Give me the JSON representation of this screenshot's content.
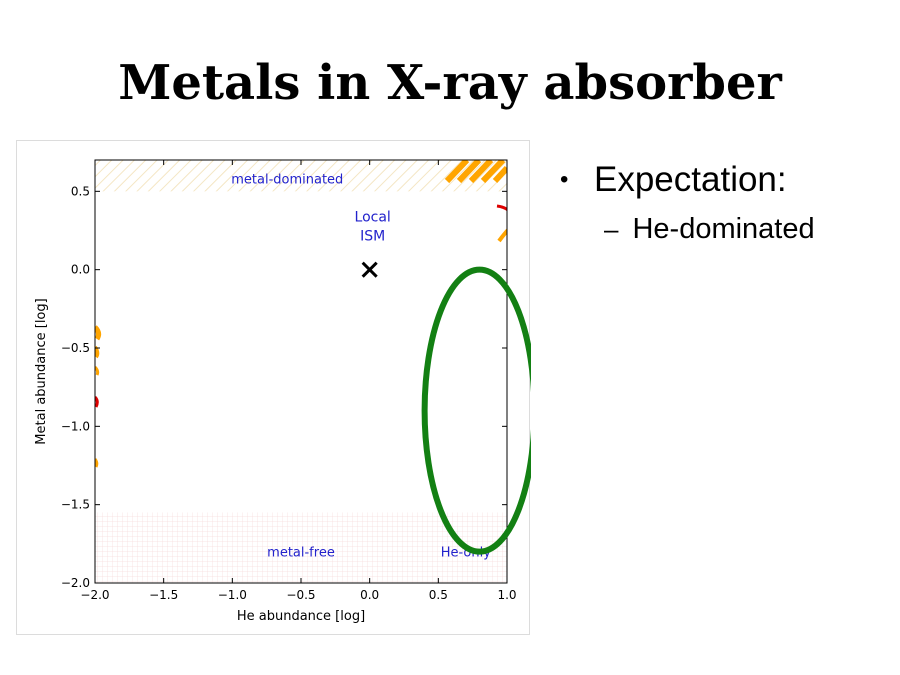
{
  "slide": {
    "title": "Metals in X-ray absorber",
    "bullets": [
      {
        "text": "Expectation:",
        "marker": "•",
        "sub": [
          {
            "text": "He-dominated",
            "marker": "–"
          }
        ]
      }
    ]
  },
  "chart_data": {
    "type": "scatter",
    "title": "",
    "xlabel": "He abundance [log]",
    "ylabel": "Metal abundance [log]",
    "xlim": [
      -2.0,
      1.0
    ],
    "ylim": [
      -2.0,
      0.7
    ],
    "xticks": [
      -2.0,
      -1.5,
      -1.0,
      -0.5,
      0.0,
      0.5,
      1.0
    ],
    "xtick_labels": [
      "−2.0",
      "−1.5",
      "−1.0",
      "−0.5",
      "0.0",
      "0.5",
      "1.0"
    ],
    "yticks": [
      0.5,
      0.0,
      -0.5,
      -1.0,
      -1.5,
      -2.0
    ],
    "ytick_labels": [
      "0.5",
      "0.0",
      "−0.5",
      "−1.0",
      "−1.5",
      "−2.0"
    ],
    "grid": false,
    "regions": [
      {
        "label": "metal-dominated",
        "x": -0.6,
        "y": 0.55,
        "color": "#2222cc"
      },
      {
        "label": "metal-free",
        "x": -0.5,
        "y": -1.83,
        "color": "#2222cc"
      },
      {
        "label": "He-only",
        "x": 0.7,
        "y": -1.83,
        "color": "#2222cc"
      }
    ],
    "points": [
      {
        "label_lines": [
          "Local",
          "ISM"
        ],
        "x": 0.0,
        "y": 0.0,
        "marker": "x",
        "label_color": "#2222cc"
      }
    ],
    "highlight_ellipse": {
      "center_x": 0.8,
      "center_y": -0.9,
      "half_width_x": 0.4,
      "half_height_y": 0.9,
      "color": "#138013"
    },
    "colors": {
      "hatch_light": "#f4e6c4",
      "hatch_orange": "#ffa500",
      "red": "#dd0000",
      "metal_free_grid": "#f6dede"
    }
  }
}
